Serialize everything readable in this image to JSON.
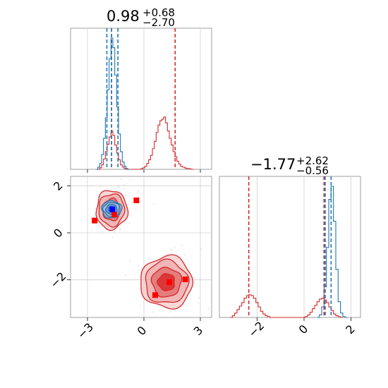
{
  "chart_data": [
    {
      "type": "histogram",
      "panel": "marginal-param-1",
      "title": {
        "value": "0.98",
        "plus": "+0.68",
        "minus": "−2.70"
      },
      "xlim": [
        -3.9,
        3.6
      ],
      "grid": true,
      "series": [
        {
          "name": "",
          "color": "#d62728",
          "bins": [
            [
              -2.4,
              0
            ],
            [
              -2.3,
              2
            ],
            [
              -2.2,
              6
            ],
            [
              -2.1,
              14
            ],
            [
              -2.0,
              24
            ],
            [
              -1.9,
              34
            ],
            [
              -1.8,
              44
            ],
            [
              -1.7,
              52
            ],
            [
              -1.6,
              46
            ],
            [
              -1.5,
              33
            ],
            [
              -1.4,
              22
            ],
            [
              -1.3,
              13
            ],
            [
              -1.2,
              6
            ],
            [
              -1.1,
              3
            ],
            [
              -1.0,
              1
            ],
            [
              -0.9,
              0
            ],
            [
              -0.2,
              0
            ],
            [
              -0.1,
              1
            ],
            [
              0.0,
              2
            ],
            [
              0.1,
              4
            ],
            [
              0.2,
              8
            ],
            [
              0.3,
              13
            ],
            [
              0.4,
              19
            ],
            [
              0.5,
              28
            ],
            [
              0.6,
              38
            ],
            [
              0.7,
              50
            ],
            [
              0.8,
              60
            ],
            [
              0.9,
              66
            ],
            [
              1.0,
              68
            ],
            [
              1.1,
              71
            ],
            [
              1.2,
              63
            ],
            [
              1.3,
              52
            ],
            [
              1.4,
              42
            ],
            [
              1.5,
              33
            ],
            [
              1.6,
              24
            ],
            [
              1.7,
              17
            ],
            [
              1.8,
              11
            ],
            [
              1.9,
              7
            ],
            [
              2.0,
              4
            ],
            [
              2.1,
              3
            ],
            [
              2.2,
              2
            ],
            [
              2.3,
              1
            ],
            [
              2.4,
              1
            ],
            [
              2.6,
              0
            ]
          ],
          "quantile_lines": [
            -1.72,
            1.66
          ]
        },
        {
          "name": "",
          "color": "#1f77b4",
          "bins": [
            [
              -2.5,
              0
            ],
            [
              -2.4,
              3
            ],
            [
              -2.3,
              8
            ],
            [
              -2.2,
              20
            ],
            [
              -2.1,
              42
            ],
            [
              -2.0,
              70
            ],
            [
              -1.9,
              108
            ],
            [
              -1.8,
              150
            ],
            [
              -1.7,
              178
            ],
            [
              -1.6,
              165
            ],
            [
              -1.5,
              128
            ],
            [
              -1.4,
              85
            ],
            [
              -1.3,
              48
            ],
            [
              -1.2,
              24
            ],
            [
              -1.1,
              10
            ],
            [
              -1.0,
              4
            ],
            [
              -0.9,
              1
            ],
            [
              -0.8,
              0
            ]
          ],
          "quantile_lines": [
            -1.97,
            -1.72,
            -1.38
          ]
        }
      ]
    },
    {
      "type": "histogram",
      "panel": "marginal-param-2",
      "title": {
        "value": "−1.77",
        "plus": "+2.62",
        "minus": "−0.56"
      },
      "xlim": [
        -3.6,
        2.4
      ],
      "grid": true,
      "tick_labels": [
        "−2",
        "0",
        "2"
      ],
      "tick_values": [
        -2,
        0,
        2
      ],
      "series": [
        {
          "name": "",
          "color": "#d62728",
          "bins": [
            [
              -3.1,
              0
            ],
            [
              -3.0,
              2
            ],
            [
              -2.9,
              5
            ],
            [
              -2.8,
              9
            ],
            [
              -2.7,
              13
            ],
            [
              -2.6,
              17
            ],
            [
              -2.5,
              22
            ],
            [
              -2.4,
              25
            ],
            [
              -2.3,
              26
            ],
            [
              -2.2,
              25
            ],
            [
              -2.1,
              22
            ],
            [
              -2.0,
              17
            ],
            [
              -1.9,
              12
            ],
            [
              -1.8,
              7
            ],
            [
              -1.7,
              4
            ],
            [
              -1.6,
              2
            ],
            [
              -1.5,
              1
            ],
            [
              -1.4,
              0
            ],
            [
              0.0,
              0
            ],
            [
              0.1,
              1
            ],
            [
              0.2,
              3
            ],
            [
              0.3,
              6
            ],
            [
              0.4,
              10
            ],
            [
              0.5,
              14
            ],
            [
              0.6,
              18
            ],
            [
              0.7,
              21
            ],
            [
              0.8,
              22
            ],
            [
              0.9,
              20
            ],
            [
              1.0,
              17
            ],
            [
              1.1,
              12
            ],
            [
              1.2,
              8
            ],
            [
              1.3,
              4
            ],
            [
              1.4,
              2
            ],
            [
              1.5,
              1
            ],
            [
              1.6,
              0
            ]
          ],
          "quantile_lines": [
            -2.35,
            0.85
          ]
        },
        {
          "name": "",
          "color": "#1f77b4",
          "bins": [
            [
              0.6,
              0
            ],
            [
              0.7,
              3
            ],
            [
              0.8,
              12
            ],
            [
              0.9,
              35
            ],
            [
              1.0,
              80
            ],
            [
              1.1,
              135
            ],
            [
              1.2,
              150
            ],
            [
              1.3,
              110
            ],
            [
              1.4,
              55
            ],
            [
              1.5,
              18
            ],
            [
              1.6,
              5
            ],
            [
              1.7,
              1
            ],
            [
              1.8,
              0
            ]
          ],
          "quantile_lines": [
            0.9,
            1.15
          ]
        }
      ]
    },
    {
      "type": "contour",
      "panel": "joint-param-1-vs-param-2",
      "xlim": [
        -3.9,
        3.6
      ],
      "ylim": [
        -3.6,
        2.4
      ],
      "grid": true,
      "x_tick_labels": [
        "−3",
        "0",
        "3"
      ],
      "x_tick_values": [
        -3,
        0,
        3
      ],
      "y_tick_labels": [
        "−2",
        "0",
        "2"
      ],
      "y_tick_values": [
        -2,
        0,
        2
      ],
      "components": [
        {
          "color": "#d62728",
          "center": [
            -1.72,
            0.98
          ],
          "sigma": [
            0.36,
            0.36
          ]
        },
        {
          "color": "#d62728",
          "center": [
            1.2,
            -2.1
          ],
          "sigma": [
            0.6,
            0.48
          ]
        },
        {
          "color": "#1f77b4",
          "center": [
            -1.72,
            1.0
          ],
          "sigma": [
            0.23,
            0.16
          ]
        }
      ],
      "markers": [
        {
          "color": "#ff0000",
          "shape": "square",
          "x": -0.4,
          "y": 1.38
        },
        {
          "color": "#ff0000",
          "shape": "square",
          "x": -2.62,
          "y": 0.52
        },
        {
          "color": "#ff0000",
          "shape": "square",
          "x": -1.57,
          "y": 0.78
        },
        {
          "color": "#ff0000",
          "shape": "square",
          "x": 0.6,
          "y": -2.65
        },
        {
          "color": "#ff0000",
          "shape": "square",
          "x": 1.35,
          "y": -2.1
        },
        {
          "color": "#ff0000",
          "shape": "square",
          "x": 2.2,
          "y": -1.98
        },
        {
          "color": "#0000ff",
          "shape": "square",
          "x": -1.68,
          "y": 1.0
        }
      ]
    }
  ]
}
